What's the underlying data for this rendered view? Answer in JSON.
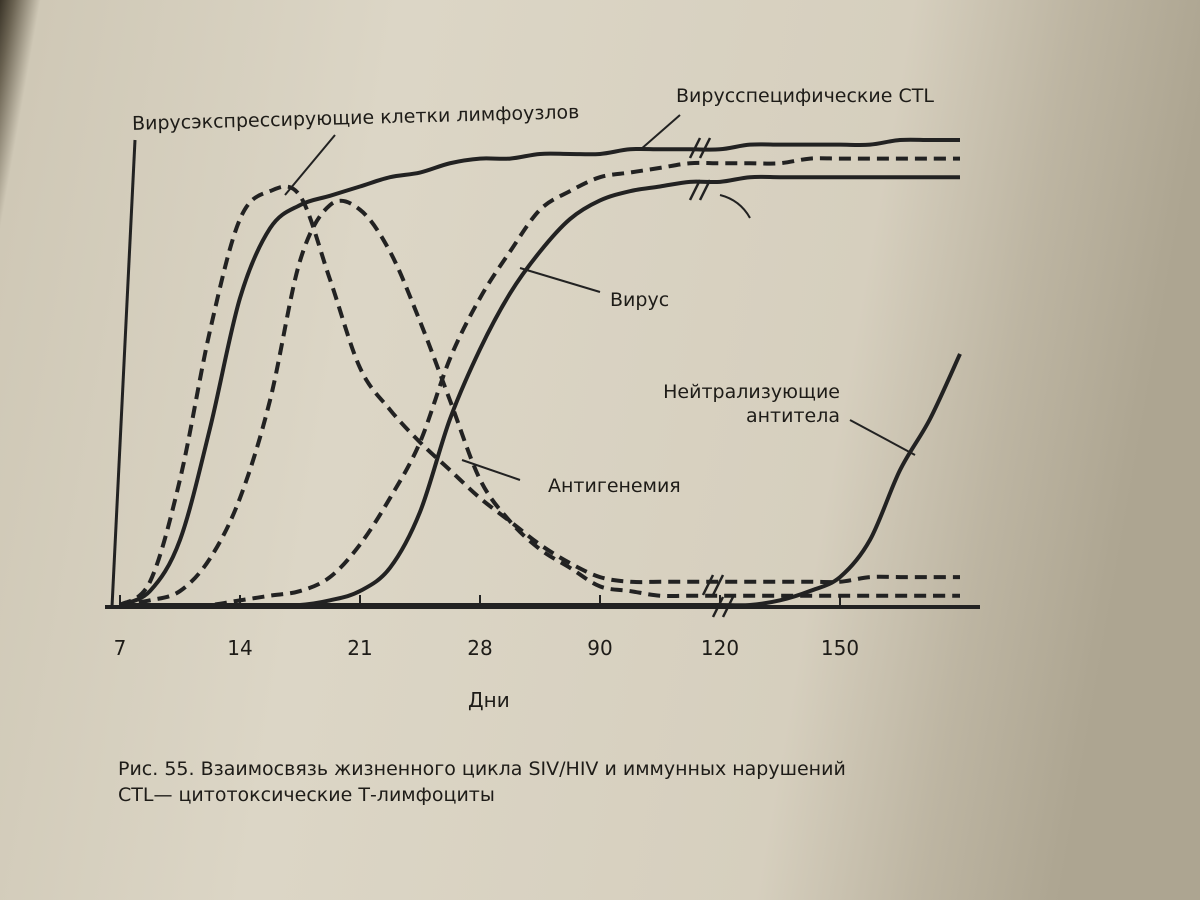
{
  "chart_data": {
    "type": "line",
    "x_label": "Дни",
    "categories": [
      "7",
      null,
      null,
      null,
      "14",
      null,
      null,
      null,
      "21",
      null,
      null,
      null,
      "28",
      null,
      null,
      null,
      "90",
      null,
      null,
      null,
      "120",
      null,
      null,
      null,
      "150",
      null,
      null,
      null,
      null
    ],
    "ylim": [
      0,
      100
    ],
    "series": [
      {
        "name": "Вирусэкспрессирующие клетки лимфоузлов",
        "color": "#222",
        "dashed": true,
        "values": [
          0,
          5,
          27,
          59,
          83,
          89,
          88,
          70,
          51,
          42,
          35,
          29,
          23,
          18,
          13,
          9,
          6,
          5,
          5,
          5,
          5,
          5,
          5,
          5,
          5,
          6,
          6,
          6,
          6
        ]
      },
      {
        "name": "Вирусспецифические CTL",
        "color": "#222",
        "dashed": false,
        "values": [
          0,
          3,
          14,
          38,
          66,
          81,
          86,
          88,
          90,
          92,
          93,
          95,
          96,
          96,
          97,
          97,
          97,
          98,
          98,
          98,
          98,
          99,
          99,
          99,
          99,
          99,
          100,
          100,
          100
        ]
      },
      {
        "name": "Вирус",
        "color": "#222",
        "dashed": true,
        "values": [
          0,
          0,
          0,
          0,
          1,
          2,
          3,
          6,
          13,
          23,
          35,
          53,
          66,
          76,
          85,
          89,
          92,
          93,
          94,
          95,
          95,
          95,
          95,
          96,
          96,
          96,
          96,
          96,
          96
        ]
      },
      {
        "name": "Антигенемия",
        "color": "#222",
        "dashed": true,
        "values": [
          0,
          1,
          3,
          10,
          23,
          44,
          74,
          86,
          85,
          76,
          61,
          44,
          27,
          18,
          12,
          8,
          4,
          3,
          2,
          2,
          2,
          2,
          2,
          2,
          2,
          2,
          2,
          2,
          2
        ]
      },
      {
        "name": "Нейтрализующие антитела",
        "color": "#222",
        "dashed": false,
        "values": [
          0,
          0,
          0,
          0,
          0,
          0,
          0,
          0,
          0,
          0,
          0,
          0,
          0,
          0,
          0,
          0,
          0,
          0,
          0,
          0,
          0,
          0,
          1,
          3,
          6,
          14,
          29,
          40,
          54
        ]
      },
      {
        "color": "#222",
        "dashed": false,
        "values": [
          0,
          0,
          0,
          0,
          0,
          0,
          0,
          1,
          3,
          8,
          20,
          40,
          55,
          67,
          76,
          83,
          87,
          89,
          90,
          91,
          91,
          92,
          92,
          92,
          92,
          92,
          92,
          92,
          92
        ]
      }
    ],
    "caption": [
      "Рис. 55. Взаимосвязь жизненного цикла SIV/HIV и иммунных нарушений",
      "CTL— цитотоксические Т-лимфоциты"
    ]
  }
}
